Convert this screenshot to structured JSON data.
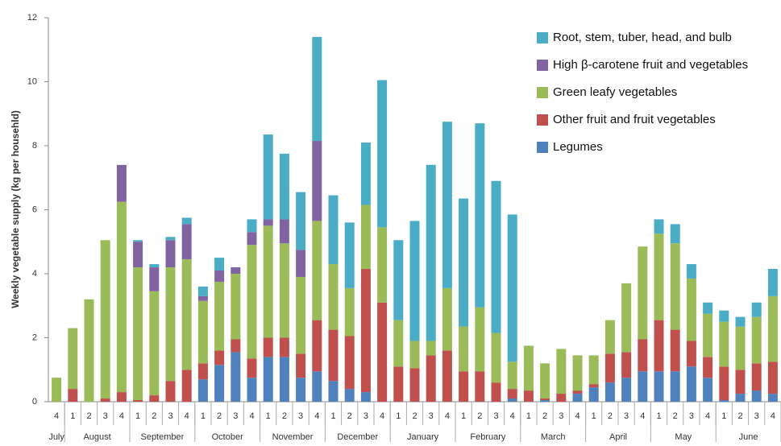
{
  "chart_data": {
    "type": "stacked_bar",
    "y_label": "Weekly vegetable supply (kg per househld)",
    "categories": [
      "4",
      "1",
      "2",
      "3",
      "4",
      "1",
      "2",
      "3",
      "4",
      "1",
      "2",
      "3",
      "4",
      "1",
      "2",
      "3",
      "4",
      "1",
      "2",
      "3",
      "4",
      "1",
      "2",
      "3",
      "4",
      "1",
      "2",
      "3",
      "4",
      "1",
      "2",
      "3",
      "4",
      "1",
      "2",
      "3",
      "4",
      "1",
      "2",
      "3",
      "4",
      "1",
      "2",
      "3",
      "4"
    ],
    "groups": [
      {
        "label": "July",
        "size": 1
      },
      {
        "label": "August",
        "size": 4
      },
      {
        "label": "September",
        "size": 4
      },
      {
        "label": "October",
        "size": 4
      },
      {
        "label": "November",
        "size": 4
      },
      {
        "label": "December",
        "size": 4
      },
      {
        "label": "January",
        "size": 4
      },
      {
        "label": "February",
        "size": 4
      },
      {
        "label": "March",
        "size": 4
      },
      {
        "label": "April",
        "size": 4
      },
      {
        "label": "May",
        "size": 4
      },
      {
        "label": "June",
        "size": 4
      }
    ],
    "series": [
      {
        "name": "Legumes",
        "color": "#4f81bd",
        "values": [
          0,
          0,
          0,
          0,
          0,
          0,
          0,
          0,
          0,
          0.7,
          1.15,
          1.55,
          0.75,
          1.4,
          1.4,
          0.75,
          0.95,
          0.65,
          0.4,
          0.3,
          0,
          0,
          0,
          0,
          0,
          0,
          0,
          0,
          0.1,
          0,
          0.05,
          0,
          0.25,
          0.45,
          0.6,
          0.75,
          0.95,
          0.95,
          0.95,
          1.1,
          0.75,
          0.05,
          0.25,
          0.35,
          0.25
        ]
      },
      {
        "name": "Other fruit and fruit vegetables",
        "color": "#c0504d",
        "values": [
          0,
          0.4,
          0,
          0.1,
          0.3,
          0.05,
          0.2,
          0.65,
          1.0,
          0.5,
          0.45,
          0.4,
          0.6,
          0.6,
          0.6,
          0.75,
          1.6,
          1.6,
          1.65,
          3.85,
          3.1,
          1.1,
          1.05,
          1.45,
          1.6,
          0.95,
          0.95,
          0.6,
          0.3,
          0.35,
          0.05,
          0.25,
          0.1,
          0.1,
          0.9,
          0.8,
          1.0,
          1.6,
          1.3,
          0.8,
          0.65,
          1.05,
          0.75,
          0.85,
          1.0
        ]
      },
      {
        "name": "Green leafy vegetables",
        "color": "#9bbb59",
        "values": [
          0.75,
          1.9,
          3.2,
          4.95,
          5.95,
          4.15,
          3.25,
          3.55,
          3.45,
          1.95,
          2.15,
          2.05,
          3.55,
          3.5,
          2.95,
          2.4,
          3.1,
          2.05,
          1.5,
          2.0,
          2.35,
          1.45,
          0.85,
          0.45,
          1.95,
          1.4,
          2.0,
          1.55,
          0.85,
          1.4,
          1.1,
          1.4,
          1.1,
          0.9,
          1.05,
          2.15,
          2.9,
          2.7,
          2.7,
          1.95,
          1.35,
          1.4,
          1.35,
          1.45,
          2.05
        ]
      },
      {
        "name": "High β-carotene fruit and vegetables",
        "color": "#8064a2",
        "values": [
          0,
          0,
          0,
          0,
          1.15,
          0.8,
          0.75,
          0.85,
          1.1,
          0.15,
          0.35,
          0.2,
          0.4,
          0.2,
          0.75,
          0.85,
          2.5,
          0,
          0,
          0,
          0,
          0,
          0,
          0,
          0,
          0,
          0,
          0,
          0,
          0,
          0,
          0,
          0,
          0,
          0,
          0,
          0,
          0,
          0,
          0,
          0,
          0,
          0,
          0,
          0
        ]
      },
      {
        "name": "Root, stem, tuber, head, and bulb",
        "color": "#4bacc6",
        "values": [
          0,
          0,
          0,
          0,
          0,
          0.05,
          0.1,
          0.1,
          0.2,
          0.3,
          0.4,
          0,
          0.4,
          2.65,
          2.05,
          1.8,
          3.25,
          2.15,
          2.05,
          1.95,
          4.6,
          2.5,
          3.75,
          5.5,
          5.2,
          4.0,
          5.75,
          4.75,
          4.6,
          0,
          0,
          0,
          0,
          0,
          0,
          0,
          0,
          0.45,
          0.6,
          0.45,
          0.35,
          0.35,
          0.3,
          0.45,
          0.85
        ]
      }
    ],
    "ylim": [
      0,
      12
    ],
    "yticks": [
      0,
      2,
      4,
      6,
      8,
      10,
      12
    ],
    "grid": false,
    "legend": "top-right"
  }
}
